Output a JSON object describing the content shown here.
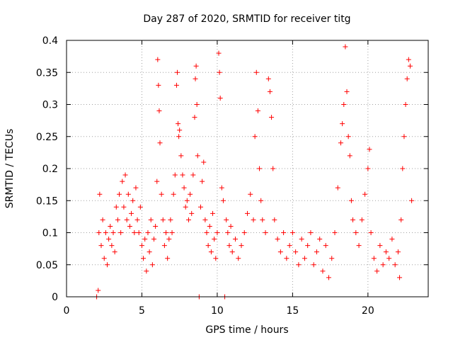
{
  "chart_data": {
    "type": "scatter",
    "title": "Day 287 of 2020, SRMTID for receiver titg",
    "xlabel": "GPS time / hours",
    "ylabel": "SRMTID / TECUs",
    "xlim": [
      0,
      24
    ],
    "ylim": [
      0,
      0.4
    ],
    "x_ticks": [
      0,
      5,
      10,
      15,
      20
    ],
    "x_tick_labels": [
      "0",
      "5",
      "10",
      "15",
      "20"
    ],
    "y_ticks": [
      0,
      0.05,
      0.1,
      0.15,
      0.2,
      0.25,
      0.3,
      0.35,
      0.4
    ],
    "y_tick_labels": [
      "0",
      "0.05",
      "0.1",
      "0.15",
      "0.2",
      "0.25",
      "0.3",
      "0.35",
      "0.4"
    ],
    "grid": true,
    "marker": "plus",
    "color": "#ff0000",
    "series": [
      {
        "values_note_points": [
          [
            2.0,
            0.0
          ],
          [
            2.1,
            0.01
          ],
          [
            2.15,
            0.1
          ],
          [
            2.2,
            0.16
          ],
          [
            2.3,
            0.08
          ],
          [
            2.4,
            0.12
          ],
          [
            2.5,
            0.06
          ],
          [
            2.6,
            0.1
          ],
          [
            2.7,
            0.05
          ],
          [
            2.8,
            0.09
          ],
          [
            2.9,
            0.11
          ],
          [
            3.0,
            0.08
          ],
          [
            3.1,
            0.1
          ],
          [
            3.2,
            0.07
          ],
          [
            3.3,
            0.14
          ],
          [
            3.4,
            0.12
          ],
          [
            3.5,
            0.16
          ],
          [
            3.6,
            0.1
          ],
          [
            3.7,
            0.18
          ],
          [
            3.8,
            0.14
          ],
          [
            3.9,
            0.19
          ],
          [
            4.0,
            0.12
          ],
          [
            4.1,
            0.16
          ],
          [
            4.2,
            0.11
          ],
          [
            4.3,
            0.13
          ],
          [
            4.4,
            0.15
          ],
          [
            4.5,
            0.1
          ],
          [
            4.6,
            0.17
          ],
          [
            4.7,
            0.12
          ],
          [
            4.8,
            0.1
          ],
          [
            4.9,
            0.14
          ],
          [
            5.0,
            0.08
          ],
          [
            5.1,
            0.06
          ],
          [
            5.2,
            0.09
          ],
          [
            5.3,
            0.04
          ],
          [
            5.4,
            0.1
          ],
          [
            5.5,
            0.07
          ],
          [
            5.6,
            0.12
          ],
          [
            5.7,
            0.05
          ],
          [
            5.8,
            0.09
          ],
          [
            5.9,
            0.11
          ],
          [
            6.0,
            0.18
          ],
          [
            6.05,
            0.37
          ],
          [
            6.1,
            0.33
          ],
          [
            6.15,
            0.29
          ],
          [
            6.2,
            0.24
          ],
          [
            6.3,
            0.16
          ],
          [
            6.4,
            0.12
          ],
          [
            6.5,
            0.08
          ],
          [
            6.6,
            0.1
          ],
          [
            6.7,
            0.06
          ],
          [
            6.8,
            0.09
          ],
          [
            6.9,
            0.12
          ],
          [
            7.0,
            0.1
          ],
          [
            7.1,
            0.16
          ],
          [
            7.2,
            0.19
          ],
          [
            7.3,
            0.33
          ],
          [
            7.35,
            0.35
          ],
          [
            7.4,
            0.27
          ],
          [
            7.45,
            0.25
          ],
          [
            7.5,
            0.26
          ],
          [
            7.6,
            0.22
          ],
          [
            7.7,
            0.19
          ],
          [
            7.8,
            0.17
          ],
          [
            7.9,
            0.14
          ],
          [
            8.0,
            0.15
          ],
          [
            8.1,
            0.12
          ],
          [
            8.2,
            0.16
          ],
          [
            8.3,
            0.13
          ],
          [
            8.4,
            0.19
          ],
          [
            8.5,
            0.28
          ],
          [
            8.55,
            0.34
          ],
          [
            8.6,
            0.36
          ],
          [
            8.65,
            0.3
          ],
          [
            8.7,
            0.22
          ],
          [
            8.8,
            0.0
          ],
          [
            8.9,
            0.14
          ],
          [
            9.0,
            0.18
          ],
          [
            9.1,
            0.21
          ],
          [
            9.2,
            0.12
          ],
          [
            9.3,
            0.1
          ],
          [
            9.4,
            0.08
          ],
          [
            9.5,
            0.11
          ],
          [
            9.6,
            0.07
          ],
          [
            9.7,
            0.13
          ],
          [
            9.8,
            0.09
          ],
          [
            9.9,
            0.06
          ],
          [
            10.0,
            0.1
          ],
          [
            10.1,
            0.38
          ],
          [
            10.15,
            0.35
          ],
          [
            10.2,
            0.31
          ],
          [
            10.3,
            0.17
          ],
          [
            10.4,
            0.15
          ],
          [
            10.5,
            0.0
          ],
          [
            10.6,
            0.12
          ],
          [
            10.7,
            0.1
          ],
          [
            10.8,
            0.08
          ],
          [
            10.9,
            0.11
          ],
          [
            11.0,
            0.07
          ],
          [
            11.2,
            0.09
          ],
          [
            11.4,
            0.06
          ],
          [
            11.6,
            0.08
          ],
          [
            11.8,
            0.1
          ],
          [
            12.0,
            0.13
          ],
          [
            12.2,
            0.16
          ],
          [
            12.4,
            0.12
          ],
          [
            12.5,
            0.25
          ],
          [
            12.6,
            0.35
          ],
          [
            12.7,
            0.29
          ],
          [
            12.8,
            0.2
          ],
          [
            12.9,
            0.15
          ],
          [
            13.0,
            0.12
          ],
          [
            13.2,
            0.1
          ],
          [
            13.4,
            0.34
          ],
          [
            13.5,
            0.32
          ],
          [
            13.6,
            0.28
          ],
          [
            13.7,
            0.2
          ],
          [
            13.8,
            0.12
          ],
          [
            14.0,
            0.09
          ],
          [
            14.2,
            0.07
          ],
          [
            14.4,
            0.1
          ],
          [
            14.6,
            0.06
          ],
          [
            14.8,
            0.08
          ],
          [
            15.0,
            0.1
          ],
          [
            15.2,
            0.07
          ],
          [
            15.4,
            0.05
          ],
          [
            15.6,
            0.09
          ],
          [
            15.8,
            0.06
          ],
          [
            16.0,
            0.08
          ],
          [
            16.2,
            0.1
          ],
          [
            16.4,
            0.05
          ],
          [
            16.6,
            0.07
          ],
          [
            16.8,
            0.09
          ],
          [
            17.0,
            0.04
          ],
          [
            17.2,
            0.08
          ],
          [
            17.4,
            0.03
          ],
          [
            17.6,
            0.06
          ],
          [
            17.8,
            0.1
          ],
          [
            18.0,
            0.17
          ],
          [
            18.2,
            0.24
          ],
          [
            18.3,
            0.27
          ],
          [
            18.4,
            0.3
          ],
          [
            18.5,
            0.39
          ],
          [
            18.6,
            0.32
          ],
          [
            18.7,
            0.25
          ],
          [
            18.8,
            0.22
          ],
          [
            18.9,
            0.15
          ],
          [
            19.0,
            0.12
          ],
          [
            19.2,
            0.1
          ],
          [
            19.4,
            0.08
          ],
          [
            19.6,
            0.12
          ],
          [
            19.8,
            0.16
          ],
          [
            20.0,
            0.2
          ],
          [
            20.1,
            0.23
          ],
          [
            20.2,
            0.1
          ],
          [
            20.4,
            0.06
          ],
          [
            20.6,
            0.04
          ],
          [
            20.8,
            0.08
          ],
          [
            21.0,
            0.05
          ],
          [
            21.2,
            0.07
          ],
          [
            21.4,
            0.06
          ],
          [
            21.6,
            0.09
          ],
          [
            21.8,
            0.05
          ],
          [
            22.0,
            0.07
          ],
          [
            22.1,
            0.03
          ],
          [
            22.2,
            0.12
          ],
          [
            22.3,
            0.2
          ],
          [
            22.4,
            0.25
          ],
          [
            22.5,
            0.3
          ],
          [
            22.6,
            0.34
          ],
          [
            22.7,
            0.37
          ],
          [
            22.8,
            0.36
          ],
          [
            22.9,
            0.15
          ]
        ]
      }
    ]
  }
}
